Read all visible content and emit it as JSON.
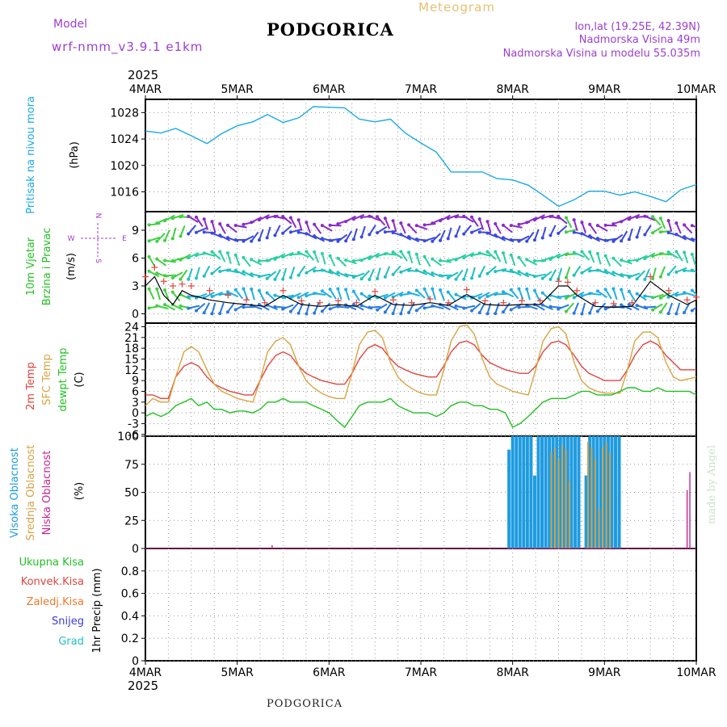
{
  "header": {
    "model_label": "Model",
    "model_name": "wrf-nmm_v3.9.1 e1km",
    "city": "PODGORICA",
    "meteogram": "Meteogram",
    "lonlat": "lon,lat (19.25E, 42.39N)",
    "elevation": "Nadmorska Visina 49m",
    "model_elevation": "Nadmorska Visina u modelu 55.035m",
    "footer_city": "PODGORICA",
    "credit": "made by Angel",
    "year_top": "2025",
    "year_bottom": "2025",
    "compass": {
      "n": "N",
      "s": "S",
      "e": "E",
      "w": "W"
    }
  },
  "colors": {
    "pressure": "#1ba9e6",
    "temp2m": "#e0453e",
    "sfc": "#d9a441",
    "dewpt": "#22c022",
    "high": "#1e9be0",
    "mid": "#d4a24a",
    "low": "#c4278e",
    "total": "#22c022",
    "conv": "#e0453e",
    "frozen": "#f07a2a",
    "snow": "#3a3ae0",
    "hail": "#20c0c0",
    "wind_speed": "#000000",
    "gust": "#e0453e",
    "title_purple": "#9b3fd0",
    "meteogram": "#e8c070"
  },
  "chart_data": [
    {
      "type": "line",
      "name": "pressure",
      "ylabel_lines": [
        "Pritisak na nivou mora",
        "(hPa)"
      ],
      "ylim": [
        1013,
        1030
      ],
      "yticks": [
        1016,
        1020,
        1024,
        1028
      ],
      "x_days": [
        0,
        0.17,
        0.33,
        0.5,
        0.67,
        0.83,
        1.0,
        1.17,
        1.33,
        1.5,
        1.67,
        1.83,
        2.0,
        2.17,
        2.33,
        2.5,
        2.67,
        2.83,
        3.0,
        3.17,
        3.33,
        3.5,
        3.67,
        3.83,
        4.0,
        4.17,
        4.33,
        4.5,
        4.67,
        4.83,
        5.0,
        5.17,
        5.33,
        5.5,
        5.67,
        5.83,
        6.0
      ],
      "values": [
        1025.2,
        1024.9,
        1025.6,
        1024.5,
        1023.3,
        1024.8,
        1026.0,
        1026.6,
        1027.7,
        1026.5,
        1027.2,
        1028.9,
        1028.8,
        1028.7,
        1027.0,
        1026.6,
        1027.0,
        1024.9,
        1023.4,
        1022.0,
        1019.0,
        1019.0,
        1019.0,
        1018.0,
        1017.8,
        1017.0,
        1015.5,
        1013.8,
        1014.8,
        1016.1,
        1016.1,
        1015.5,
        1016.0,
        1015.3,
        1014.5,
        1016.3,
        1017.1
      ]
    },
    {
      "type": "line",
      "name": "wind",
      "ylabel_lines": [
        "10m Vjetar",
        "Brzina i Pravac",
        "(m/s)"
      ],
      "ylim": [
        -1,
        11
      ],
      "yticks": [
        0,
        3,
        6,
        9
      ],
      "x_days": [
        0,
        0.1,
        0.2,
        0.3,
        0.4,
        0.5,
        0.7,
        0.9,
        1.1,
        1.3,
        1.5,
        1.7,
        1.9,
        2.1,
        2.3,
        2.5,
        2.7,
        2.9,
        3.1,
        3.3,
        3.5,
        3.7,
        3.9,
        4.1,
        4.3,
        4.5,
        4.6,
        4.7,
        4.9,
        5.1,
        5.3,
        5.5,
        5.7,
        5.9,
        6.0
      ],
      "speed": [
        3.0,
        4.0,
        2.0,
        1.0,
        2.5,
        2.0,
        1.5,
        1.2,
        1.0,
        0.8,
        2.0,
        1.0,
        0.8,
        1.0,
        0.8,
        2.0,
        1.0,
        0.9,
        1.2,
        0.9,
        2.1,
        1.0,
        0.9,
        1.0,
        1.0,
        3.0,
        3.0,
        2.0,
        0.8,
        0.7,
        0.8,
        3.5,
        2.0,
        1.0,
        1.5
      ],
      "gust": [
        4.0,
        5.0,
        3.5,
        3.0,
        3.2,
        3.0,
        2.5,
        2.0,
        1.5,
        1.2,
        2.5,
        1.4,
        1.2,
        1.4,
        1.2,
        2.4,
        1.5,
        1.2,
        1.6,
        1.2,
        2.6,
        1.4,
        1.2,
        1.4,
        1.4,
        3.5,
        3.4,
        2.5,
        1.2,
        1.1,
        1.2,
        4.0,
        2.5,
        1.5,
        1.8
      ]
    },
    {
      "type": "line",
      "name": "temperature",
      "ylabel_lines": [
        "2m Temp",
        "SFC Temp",
        "dewpt Temp",
        "(C)"
      ],
      "ylim": [
        -6.5,
        25
      ],
      "yticks": [
        -6,
        -3,
        0,
        3,
        6,
        9,
        12,
        15,
        18,
        21,
        24
      ],
      "x_days": [
        0,
        0.08,
        0.17,
        0.25,
        0.33,
        0.42,
        0.5,
        0.58,
        0.67,
        0.75,
        0.83,
        0.92,
        1.0,
        1.08,
        1.17,
        1.25,
        1.33,
        1.42,
        1.5,
        1.58,
        1.67,
        1.75,
        1.83,
        1.92,
        2.0,
        2.08,
        2.17,
        2.25,
        2.33,
        2.42,
        2.5,
        2.58,
        2.67,
        2.75,
        2.83,
        2.92,
        3.0,
        3.08,
        3.17,
        3.25,
        3.33,
        3.42,
        3.5,
        3.58,
        3.67,
        3.75,
        3.83,
        3.92,
        4.0,
        4.08,
        4.17,
        4.25,
        4.33,
        4.42,
        4.5,
        4.58,
        4.67,
        4.75,
        4.83,
        4.92,
        5.0,
        5.08,
        5.17,
        5.25,
        5.33,
        5.42,
        5.5,
        5.58,
        5.67,
        5.75,
        5.83,
        5.92,
        6.0
      ],
      "series": [
        {
          "name": "2m",
          "values": [
            5,
            5,
            4,
            4,
            10,
            13,
            14,
            13,
            10,
            8,
            7,
            6,
            5.5,
            5,
            5,
            9,
            13,
            16,
            17,
            16,
            13,
            11,
            10,
            9,
            8.5,
            8,
            8,
            11,
            15,
            18,
            19,
            18,
            15,
            13,
            12,
            11,
            10.5,
            10,
            10,
            13,
            17,
            19.5,
            20,
            19,
            16,
            14,
            13,
            12,
            11.5,
            11,
            11,
            13,
            17,
            19.5,
            20,
            19,
            16,
            13,
            11,
            10,
            9,
            9,
            9,
            12,
            16,
            19,
            20,
            19,
            16,
            14,
            12,
            12,
            12
          ]
        },
        {
          "name": "sfc",
          "values": [
            2,
            4,
            3,
            3,
            10,
            17,
            18.5,
            17,
            12,
            8,
            6,
            5,
            4,
            3.5,
            3,
            9,
            17,
            20,
            21,
            19,
            13,
            9,
            7,
            5.5,
            4.5,
            4,
            4,
            11,
            19,
            22.5,
            23,
            21,
            14,
            10,
            8,
            6.5,
            5.5,
            5,
            5,
            12,
            20,
            24,
            24.5,
            22,
            15,
            10,
            8,
            7,
            6,
            5.5,
            5,
            12,
            20,
            23.5,
            24,
            22,
            14,
            9,
            7,
            6,
            5.5,
            5.5,
            5.5,
            12,
            20,
            22.5,
            22.5,
            21,
            14,
            10,
            9,
            9.5,
            10
          ]
        },
        {
          "name": "dewpt",
          "values": [
            -1,
            0,
            -1,
            0,
            2,
            3,
            4,
            2,
            3,
            1,
            1,
            0,
            0.5,
            0.5,
            0,
            1,
            3,
            3,
            4,
            3,
            3,
            3,
            2,
            1,
            0,
            -2,
            -4,
            -1,
            2,
            3,
            3,
            3,
            4,
            2,
            1,
            0,
            0,
            0,
            -1,
            0,
            2,
            3,
            3,
            2,
            2,
            1,
            1,
            0,
            -4,
            -3,
            -1,
            1,
            3,
            4,
            4,
            4,
            5,
            6,
            6,
            5,
            5,
            5,
            6,
            7,
            7,
            6,
            6,
            7,
            6,
            6,
            6,
            6,
            5
          ]
        }
      ]
    },
    {
      "type": "bar",
      "name": "cloud",
      "ylabel_lines": [
        "Visoka Oblacnost",
        "Srednja Oblacnost",
        "Niska Oblacnost",
        "(%)"
      ],
      "ylim": [
        0,
        100
      ],
      "yticks": [
        0,
        25,
        50,
        75,
        100
      ],
      "high": {
        "x_days": [
          3.96,
          4.0,
          4.04,
          4.08,
          4.12,
          4.16,
          4.2,
          4.24,
          4.28,
          4.32,
          4.36,
          4.4,
          4.44,
          4.48,
          4.52,
          4.56,
          4.6,
          4.64,
          4.68,
          4.72,
          4.8,
          4.84,
          4.88,
          4.92,
          4.96,
          5.0,
          5.04,
          5.08,
          5.12,
          5.16
        ],
        "values": [
          88,
          100,
          100,
          100,
          100,
          100,
          100,
          65,
          100,
          100,
          100,
          100,
          100,
          100,
          100,
          100,
          100,
          100,
          100,
          100,
          65,
          100,
          100,
          100,
          100,
          100,
          100,
          100,
          100,
          100
        ]
      },
      "mid": {
        "x_days": [
          4.42,
          4.46,
          4.5,
          4.54,
          4.58,
          4.62,
          4.82,
          4.86,
          4.9,
          4.94,
          4.98,
          5.02,
          5.06
        ],
        "values": [
          85,
          90,
          80,
          92,
          88,
          60,
          95,
          90,
          80,
          35,
          90,
          95,
          85
        ]
      },
      "low": {
        "x_days": [
          1.38,
          5.9,
          5.93
        ],
        "values": [
          3,
          52,
          68
        ]
      }
    },
    {
      "type": "bar",
      "name": "precip",
      "ylabel_lines": [
        "1hr Precip (mm)"
      ],
      "ylim": [
        0,
        1
      ],
      "yticks": [
        0,
        0.2,
        0.4,
        0.6,
        0.8
      ],
      "legend": [
        "Ukupna Kisa",
        "Konvek.Kisa",
        "Zaledj.Kisa",
        "Snijeg",
        "Grad"
      ],
      "values": []
    }
  ],
  "time_axis": {
    "labels": [
      "4MAR",
      "5MAR",
      "6MAR",
      "7MAR",
      "8MAR",
      "9MAR",
      "10MAR"
    ],
    "xlim_days": [
      0,
      6
    ]
  }
}
